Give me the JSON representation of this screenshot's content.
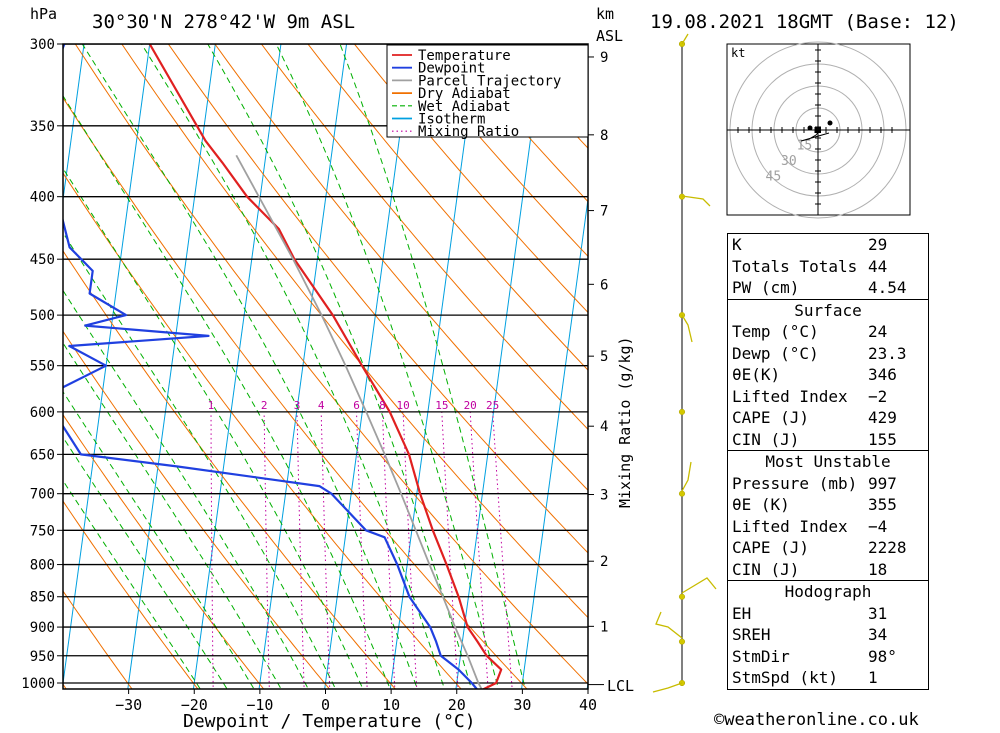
{
  "header": {
    "location": "30°30'N  278°42'W  9m  ASL",
    "datetime": "19.08.2021  18GMT  (Base: 12)",
    "hpa_label": "hPa",
    "km_label": "km",
    "asl_label": "ASL",
    "lcl_label": "LCL"
  },
  "axes": {
    "xlabel": "Dewpoint / Temperature (°C)",
    "mixing_label": "Mixing Ratio (g/kg)",
    "temp_ticks": [
      "−30",
      "−20",
      "−10",
      "0",
      "10",
      "20",
      "30",
      "40"
    ],
    "pressure_ticks": [
      "300",
      "350",
      "400",
      "450",
      "500",
      "550",
      "600",
      "650",
      "700",
      "750",
      "800",
      "850",
      "900",
      "950",
      "1000"
    ],
    "km_ticks": [
      "9",
      "8",
      "7",
      "6",
      "5",
      "4",
      "3",
      "2",
      "1"
    ],
    "mixing_ticks": [
      "1",
      "2",
      "3",
      "4",
      "6",
      "8",
      "10",
      "15",
      "20",
      "25"
    ]
  },
  "legend": {
    "items": [
      {
        "label": "Temperature",
        "color": "#e02020",
        "style": "solid"
      },
      {
        "label": "Dewpoint",
        "color": "#2040e0",
        "style": "solid"
      },
      {
        "label": "Parcel Trajectory",
        "color": "#a0a0a0",
        "style": "solid"
      },
      {
        "label": "Dry Adiabat",
        "color": "#f07000",
        "style": "solid"
      },
      {
        "label": "Wet Adiabat",
        "color": "#00b000",
        "style": "dashed"
      },
      {
        "label": "Isotherm",
        "color": "#00a0e0",
        "style": "solid"
      },
      {
        "label": "Mixing Ratio",
        "color": "#c000a0",
        "style": "dotted"
      }
    ]
  },
  "hodograph": {
    "unit": "kt",
    "ring_labels": [
      "15",
      "30",
      "45"
    ]
  },
  "indices": {
    "general": [
      {
        "label": "K",
        "value": "29"
      },
      {
        "label": "Totals Totals",
        "value": "44"
      },
      {
        "label": "PW (cm)",
        "value": "4.54"
      }
    ],
    "surface": {
      "title": "Surface",
      "rows": [
        {
          "label": "Temp (°C)",
          "value": "24"
        },
        {
          "label": "Dewp (°C)",
          "value": "23.3"
        },
        {
          "label": "θE(K)",
          "value": "346"
        },
        {
          "label": "Lifted Index",
          "value": "−2"
        },
        {
          "label": "CAPE (J)",
          "value": "429"
        },
        {
          "label": "CIN (J)",
          "value": "155"
        }
      ]
    },
    "most_unstable": {
      "title": "Most Unstable",
      "rows": [
        {
          "label": "Pressure (mb)",
          "value": "997"
        },
        {
          "label": "θE (K)",
          "value": "355"
        },
        {
          "label": "Lifted Index",
          "value": "−4"
        },
        {
          "label": "CAPE (J)",
          "value": "2228"
        },
        {
          "label": "CIN (J)",
          "value": "18"
        }
      ]
    },
    "hodograph": {
      "title": "Hodograph",
      "rows": [
        {
          "label": "EH",
          "value": "31"
        },
        {
          "label": "SREH",
          "value": "34"
        },
        {
          "label": "StmDir",
          "value": "98°"
        },
        {
          "label": "StmSpd (kt)",
          "value": "1"
        }
      ]
    }
  },
  "footer": "©weatheronline.co.uk",
  "chart_data": {
    "type": "line",
    "title": "",
    "xlabel": "Dewpoint / Temperature (°C)",
    "ylabel": "hPa",
    "xlim": [
      -40,
      40
    ],
    "ylim": [
      1000,
      300
    ],
    "y_scale": "log",
    "skew": true,
    "series": [
      {
        "name": "Temperature",
        "color": "#e02020",
        "points": [
          [
            1013,
            24
          ],
          [
            1000,
            26
          ],
          [
            975,
            26.5
          ],
          [
            950,
            24
          ],
          [
            925,
            22.3
          ],
          [
            900,
            20.5
          ],
          [
            850,
            18.5
          ],
          [
            800,
            16
          ],
          [
            750,
            13.2
          ],
          [
            700,
            10.5
          ],
          [
            650,
            8
          ],
          [
            600,
            4.2
          ],
          [
            550,
            -1
          ],
          [
            500,
            -6.5
          ],
          [
            450,
            -13.5
          ],
          [
            425,
            -16.5
          ],
          [
            400,
            -22
          ],
          [
            375,
            -26.5
          ],
          [
            360,
            -29.5
          ],
          [
            300,
            -40
          ]
        ]
      },
      {
        "name": "Dewpoint",
        "color": "#2040e0",
        "points": [
          [
            1013,
            23.3
          ],
          [
            1000,
            22.3
          ],
          [
            975,
            20
          ],
          [
            950,
            17
          ],
          [
            925,
            16
          ],
          [
            900,
            14.8
          ],
          [
            850,
            11
          ],
          [
            800,
            8.5
          ],
          [
            760,
            6
          ],
          [
            750,
            3
          ],
          [
            700,
            -3
          ],
          [
            690,
            -5
          ],
          [
            665,
            -27
          ],
          [
            650,
            -42
          ],
          [
            600,
            -47
          ],
          [
            580,
            -48
          ],
          [
            550,
            -40
          ],
          [
            530,
            -46
          ],
          [
            520,
            -25
          ],
          [
            510,
            -44
          ],
          [
            500,
            -38
          ],
          [
            480,
            -44
          ],
          [
            460,
            -44
          ],
          [
            440,
            -48
          ],
          [
            400,
            -51
          ],
          [
            370,
            -56
          ],
          [
            350,
            -52
          ],
          [
            330,
            -55
          ],
          [
            300,
            -53
          ]
        ]
      },
      {
        "name": "Parcel Trajectory",
        "color": "#a0a0a0",
        "points": [
          [
            1013,
            24
          ],
          [
            1000,
            23.3
          ],
          [
            950,
            21.1
          ],
          [
            900,
            18.6
          ],
          [
            850,
            16.1
          ],
          [
            800,
            13.4
          ],
          [
            750,
            10.6
          ],
          [
            700,
            7.6
          ],
          [
            650,
            4.3
          ],
          [
            600,
            0.6
          ],
          [
            550,
            -3.5
          ],
          [
            500,
            -8.2
          ],
          [
            450,
            -13.7
          ],
          [
            400,
            -20.2
          ],
          [
            370,
            -24.5
          ]
        ]
      }
    ],
    "wind_barbs_hpa": [
      300,
      400,
      500,
      600,
      700,
      850,
      925,
      1000
    ]
  }
}
